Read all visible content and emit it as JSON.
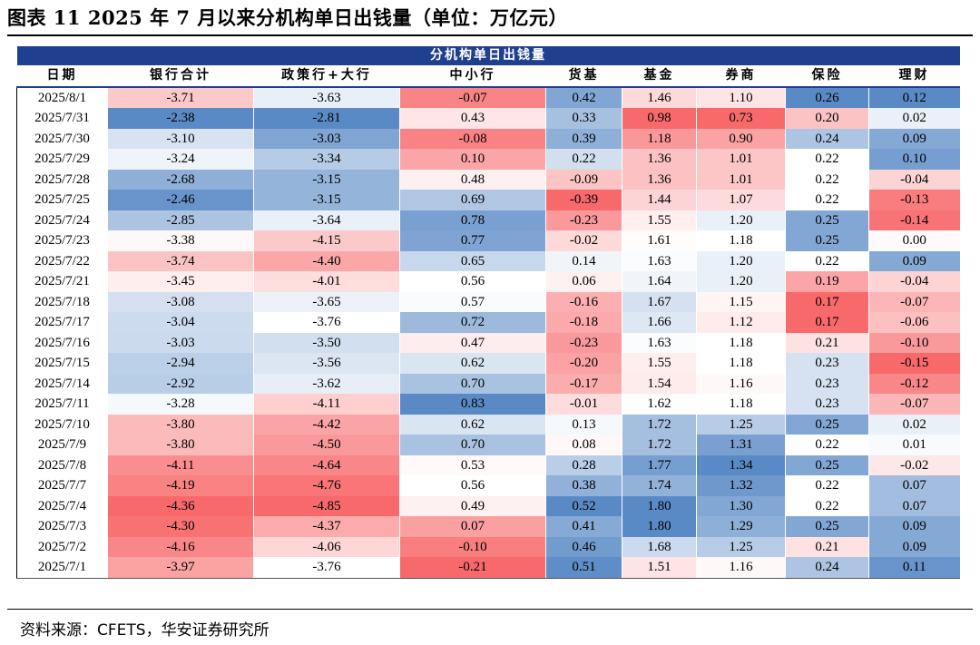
{
  "title": "图表 11 2025 年 7 月以来分机构单日出钱量（单位：万亿元）",
  "source": "资料来源：CFETS，华安证券研究所",
  "chart_data": {
    "type": "table",
    "title": "分机构单日出钱量",
    "columns": [
      "日期",
      "银行合计",
      "政策行+大行",
      "中小行",
      "货基",
      "基金",
      "券商",
      "保险",
      "理财"
    ],
    "rows": [
      [
        "2025/8/1",
        "-3.71",
        "-3.63",
        "-0.07",
        "0.42",
        "1.46",
        "1.10",
        "0.26",
        "0.12"
      ],
      [
        "2025/7/31",
        "-2.38",
        "-2.81",
        "0.43",
        "0.33",
        "0.98",
        "0.73",
        "0.20",
        "0.02"
      ],
      [
        "2025/7/30",
        "-3.10",
        "-3.03",
        "-0.08",
        "0.39",
        "1.18",
        "0.90",
        "0.24",
        "0.09"
      ],
      [
        "2025/7/29",
        "-3.24",
        "-3.34",
        "0.10",
        "0.22",
        "1.36",
        "1.01",
        "0.22",
        "0.10"
      ],
      [
        "2025/7/28",
        "-2.68",
        "-3.15",
        "0.48",
        "-0.09",
        "1.36",
        "1.01",
        "0.22",
        "-0.04"
      ],
      [
        "2025/7/25",
        "-2.46",
        "-3.15",
        "0.69",
        "-0.39",
        "1.44",
        "1.07",
        "0.22",
        "-0.13"
      ],
      [
        "2025/7/24",
        "-2.85",
        "-3.64",
        "0.78",
        "-0.23",
        "1.55",
        "1.20",
        "0.25",
        "-0.14"
      ],
      [
        "2025/7/23",
        "-3.38",
        "-4.15",
        "0.77",
        "-0.02",
        "1.61",
        "1.18",
        "0.25",
        "0.00"
      ],
      [
        "2025/7/22",
        "-3.74",
        "-4.40",
        "0.65",
        "0.14",
        "1.63",
        "1.20",
        "0.22",
        "0.09"
      ],
      [
        "2025/7/21",
        "-3.45",
        "-4.01",
        "0.56",
        "0.06",
        "1.64",
        "1.20",
        "0.19",
        "-0.04"
      ],
      [
        "2025/7/18",
        "-3.08",
        "-3.65",
        "0.57",
        "-0.16",
        "1.67",
        "1.15",
        "0.17",
        "-0.07"
      ],
      [
        "2025/7/17",
        "-3.04",
        "-3.76",
        "0.72",
        "-0.18",
        "1.66",
        "1.12",
        "0.17",
        "-0.06"
      ],
      [
        "2025/7/16",
        "-3.03",
        "-3.50",
        "0.47",
        "-0.23",
        "1.63",
        "1.18",
        "0.21",
        "-0.10"
      ],
      [
        "2025/7/15",
        "-2.94",
        "-3.56",
        "0.62",
        "-0.20",
        "1.55",
        "1.18",
        "0.23",
        "-0.15"
      ],
      [
        "2025/7/14",
        "-2.92",
        "-3.62",
        "0.70",
        "-0.17",
        "1.54",
        "1.16",
        "0.23",
        "-0.12"
      ],
      [
        "2025/7/11",
        "-3.28",
        "-4.11",
        "0.83",
        "-0.01",
        "1.62",
        "1.18",
        "0.23",
        "-0.07"
      ],
      [
        "2025/7/10",
        "-3.80",
        "-4.42",
        "0.62",
        "0.13",
        "1.72",
        "1.25",
        "0.25",
        "0.02"
      ],
      [
        "2025/7/9",
        "-3.80",
        "-4.50",
        "0.70",
        "0.08",
        "1.72",
        "1.31",
        "0.22",
        "0.01"
      ],
      [
        "2025/7/8",
        "-4.11",
        "-4.64",
        "0.53",
        "0.28",
        "1.77",
        "1.34",
        "0.25",
        "-0.02"
      ],
      [
        "2025/7/7",
        "-4.19",
        "-4.76",
        "0.56",
        "0.38",
        "1.74",
        "1.32",
        "0.22",
        "0.07"
      ],
      [
        "2025/7/4",
        "-4.36",
        "-4.85",
        "0.49",
        "0.52",
        "1.80",
        "1.30",
        "0.22",
        "0.07"
      ],
      [
        "2025/7/3",
        "-4.30",
        "-4.37",
        "0.07",
        "0.41",
        "1.80",
        "1.29",
        "0.25",
        "0.09"
      ],
      [
        "2025/7/2",
        "-4.16",
        "-4.06",
        "-0.10",
        "0.46",
        "1.68",
        "1.25",
        "0.21",
        "0.09"
      ],
      [
        "2025/7/1",
        "-3.97",
        "-3.76",
        "-0.21",
        "0.51",
        "1.51",
        "1.16",
        "0.24",
        "0.11"
      ]
    ],
    "color_scale": {
      "low": "#f8696b",
      "mid": "#ffffff",
      "high": "#5a8ac6"
    }
  }
}
